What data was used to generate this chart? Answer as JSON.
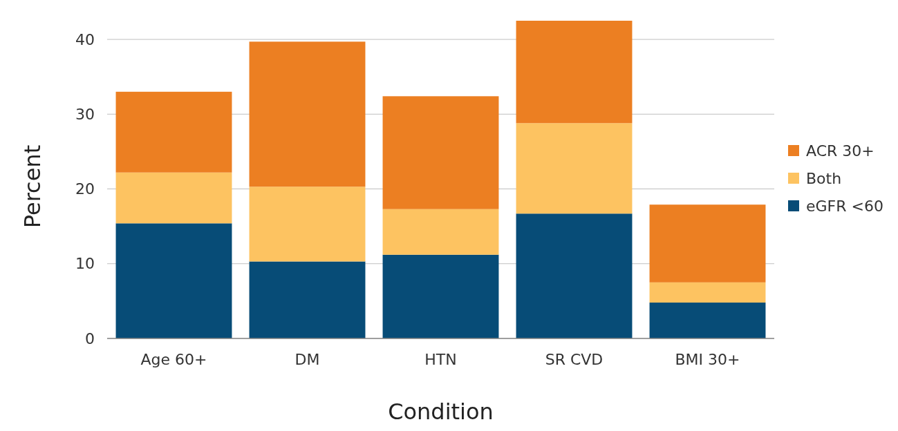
{
  "chart_data": {
    "type": "bar",
    "stacked": true,
    "xlabel": "Condition",
    "ylabel": "Percent",
    "categories": [
      "Age 60+",
      "DM",
      "HTN",
      "SR CVD",
      "BMI 30+"
    ],
    "series": [
      {
        "name": "eGFR <60",
        "color": "#074c77",
        "values": [
          15.4,
          10.3,
          11.2,
          16.7,
          4.8
        ]
      },
      {
        "name": "Both",
        "color": "#fdc361",
        "values": [
          6.8,
          10.0,
          6.1,
          12.1,
          2.7
        ]
      },
      {
        "name": "ACR 30+",
        "color": "#ec7f22",
        "values": [
          10.8,
          19.4,
          15.1,
          13.7,
          10.4
        ]
      }
    ],
    "ylim": [
      0,
      42.5
    ],
    "yticks": [
      0,
      10,
      20,
      30,
      40
    ],
    "grid": "y",
    "legend": "right"
  }
}
